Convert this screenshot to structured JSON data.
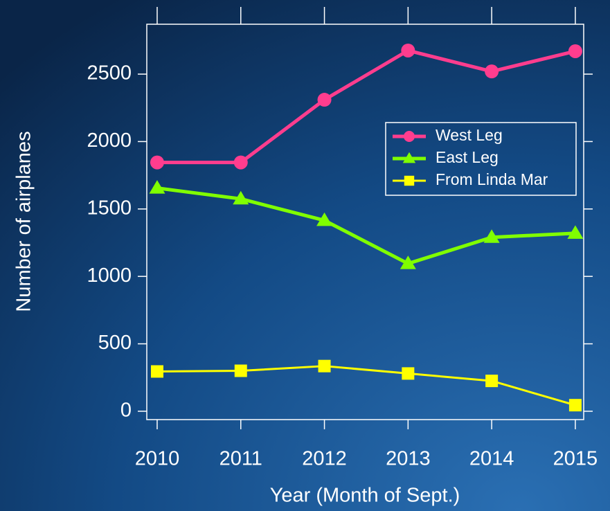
{
  "chart_data": {
    "type": "line",
    "x_label": "Year (Month of Sept.)",
    "y_label": "Number of airplanes",
    "x": [
      2010,
      2011,
      2012,
      2013,
      2014,
      2015
    ],
    "xlim": [
      2009.876,
      2015.1
    ],
    "xticks": [
      2010,
      2011,
      2012,
      2013,
      2014,
      2015
    ],
    "ylim": [
      -62,
      2870
    ],
    "yticks": [
      0,
      500,
      1000,
      1500,
      2000,
      2500
    ],
    "legend": "upper right",
    "series": [
      {
        "name": "West Leg",
        "color": "#ff3d8e",
        "marker": "circle",
        "values": [
          1845,
          1845,
          2310,
          2675,
          2520,
          2670
        ]
      },
      {
        "name": "East Leg",
        "color": "#80ff00",
        "marker": "triangle",
        "values": [
          1655,
          1575,
          1415,
          1095,
          1290,
          1320
        ]
      },
      {
        "name": "From Linda Mar",
        "color": "#ffff00",
        "marker": "square",
        "values": [
          295,
          300,
          335,
          280,
          225,
          45
        ]
      }
    ]
  }
}
